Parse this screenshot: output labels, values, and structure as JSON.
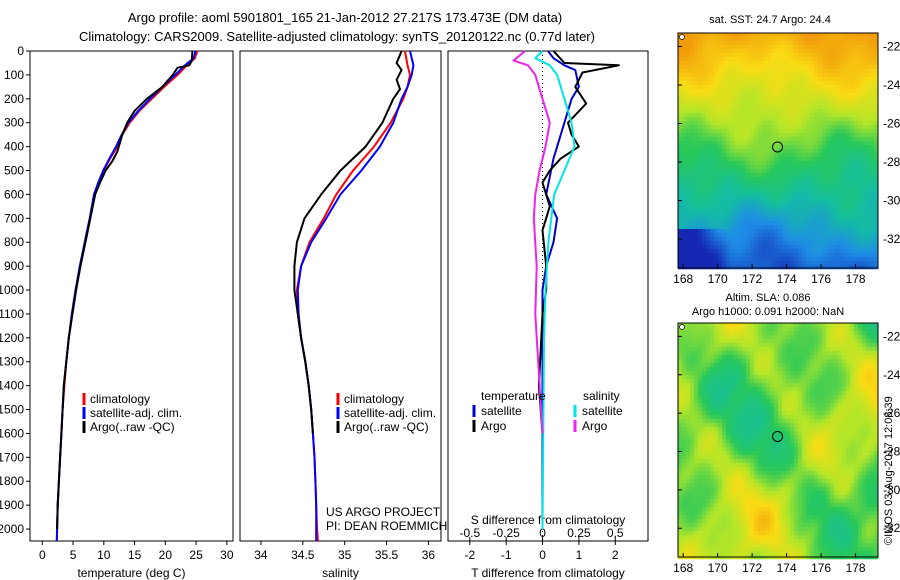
{
  "header": {
    "line1": "Argo profile: aoml 5901801_165 21-Jan-2012 27.217S 173.473E (DM data)",
    "line2": "Climatology: CARS2009. Satellite-adjusted climatology: synTS_20120122.nc (0.77d later)"
  },
  "colors": {
    "climatology": "#ff0000",
    "satellite": "#0000ff",
    "argo": "#000000",
    "t_satellite": "#0000cc",
    "s_satellite": "#00e5e5",
    "s_argo": "#ee22ee"
  },
  "legend_profiles": [
    "climatology",
    "satellite-adj. clim.",
    "Argo(..raw -QC)"
  ],
  "legend_diff": {
    "t_head": "temperature",
    "s_head": "salinity",
    "t_sat": "satellite",
    "t_argo": "Argo",
    "s_sat": "satellite",
    "s_argo": "Argo"
  },
  "credits": {
    "project": "US ARGO PROJECT",
    "pi": "PI: DEAN ROEMMICH",
    "stamp": "©IMOS 03-Aug-2017 12:08:39"
  },
  "maps": {
    "sst_title": "sat. SST: 24.7  Argo: 24.4",
    "sla_title1": "Altim. SLA: 0.086",
    "sla_title2": "Argo h1000: 0.091 h2000: NaN",
    "lon_ticks": [
      168,
      170,
      172,
      174,
      176,
      178
    ],
    "lat_ticks": [
      -22,
      -24,
      -26,
      -28,
      -30,
      -32
    ],
    "lon_range": [
      167.7,
      179.3
    ],
    "lat_range": [
      -21.3,
      -33.5
    ],
    "float_position": {
      "lon": 173.473,
      "lat": -27.217
    }
  },
  "chart_data": [
    {
      "type": "line",
      "xlabel": "temperature (deg C)",
      "xlim": [
        -2,
        31
      ],
      "ylim": [
        2050,
        0
      ],
      "x_ticks": [
        0,
        5,
        10,
        15,
        20,
        25,
        30
      ],
      "y_ticks": [
        0,
        100,
        200,
        300,
        400,
        500,
        600,
        700,
        800,
        900,
        1000,
        1100,
        1200,
        1300,
        1400,
        1500,
        1600,
        1700,
        1800,
        1900,
        2000
      ],
      "series": [
        {
          "name": "climatology",
          "points": [
            [
              25.2,
              0
            ],
            [
              24.8,
              30
            ],
            [
              23.5,
              60
            ],
            [
              22.0,
              100
            ],
            [
              19.8,
              150
            ],
            [
              17.8,
              200
            ],
            [
              15.8,
              250
            ],
            [
              14.2,
              300
            ],
            [
              13.0,
              350
            ],
            [
              12.2,
              400
            ],
            [
              11.0,
              450
            ],
            [
              10.0,
              500
            ],
            [
              9.2,
              550
            ],
            [
              8.5,
              600
            ],
            [
              7.8,
              700
            ],
            [
              7.0,
              800
            ],
            [
              6.2,
              900
            ],
            [
              5.5,
              1000
            ],
            [
              4.9,
              1100
            ],
            [
              4.3,
              1200
            ],
            [
              3.9,
              1300
            ],
            [
              3.6,
              1400
            ],
            [
              3.3,
              1500
            ],
            [
              3.1,
              1600
            ],
            [
              2.9,
              1700
            ],
            [
              2.7,
              1800
            ],
            [
              2.5,
              1900
            ],
            [
              2.4,
              2000
            ],
            [
              2.35,
              2050
            ]
          ]
        },
        {
          "name": "satellite-adj. clim.",
          "points": [
            [
              24.9,
              0
            ],
            [
              24.6,
              30
            ],
            [
              23.2,
              60
            ],
            [
              21.6,
              100
            ],
            [
              19.5,
              150
            ],
            [
              17.5,
              200
            ],
            [
              15.6,
              250
            ],
            [
              14.0,
              300
            ],
            [
              12.9,
              350
            ],
            [
              12.0,
              400
            ],
            [
              10.9,
              450
            ],
            [
              9.9,
              500
            ],
            [
              9.1,
              550
            ],
            [
              8.4,
              600
            ],
            [
              7.7,
              700
            ],
            [
              6.9,
              800
            ],
            [
              6.1,
              900
            ],
            [
              5.4,
              1000
            ],
            [
              4.8,
              1100
            ],
            [
              4.3,
              1200
            ],
            [
              3.9,
              1300
            ],
            [
              3.5,
              1400
            ],
            [
              3.3,
              1500
            ],
            [
              3.1,
              1600
            ],
            [
              2.9,
              1700
            ],
            [
              2.7,
              1800
            ],
            [
              2.5,
              1900
            ],
            [
              2.4,
              2000
            ],
            [
              2.35,
              2050
            ]
          ]
        },
        {
          "name": "Argo(..raw -QC)",
          "points": [
            [
              24.4,
              0
            ],
            [
              24.3,
              40
            ],
            [
              23.9,
              60
            ],
            [
              22.0,
              70
            ],
            [
              21.2,
              100
            ],
            [
              19.5,
              150
            ],
            [
              17.0,
              200
            ],
            [
              15.0,
              250
            ],
            [
              13.8,
              300
            ],
            [
              13.0,
              350
            ],
            [
              12.2,
              420
            ],
            [
              11.4,
              460
            ],
            [
              10.3,
              500
            ],
            [
              9.4,
              550
            ],
            [
              8.6,
              600
            ],
            [
              7.8,
              700
            ],
            [
              7.0,
              800
            ],
            [
              6.2,
              900
            ],
            [
              5.5,
              1000
            ],
            [
              4.9,
              1100
            ],
            [
              4.3,
              1200
            ],
            [
              3.9,
              1300
            ],
            [
              3.5,
              1400
            ],
            [
              3.3,
              1500
            ],
            [
              3.1,
              1600
            ],
            [
              2.9,
              1700
            ],
            [
              2.7,
              1800
            ],
            [
              2.5,
              1900
            ],
            [
              2.4,
              2000
            ]
          ]
        }
      ]
    },
    {
      "type": "line",
      "xlabel": "salinity",
      "xlim": [
        33.75,
        36.15
      ],
      "ylim": [
        2050,
        0
      ],
      "x_ticks": [
        34,
        34.5,
        35,
        35.5,
        36
      ],
      "series": [
        {
          "name": "climatology",
          "points": [
            [
              35.72,
              0
            ],
            [
              35.75,
              60
            ],
            [
              35.78,
              100
            ],
            [
              35.75,
              150
            ],
            [
              35.7,
              200
            ],
            [
              35.55,
              300
            ],
            [
              35.35,
              400
            ],
            [
              35.1,
              500
            ],
            [
              34.9,
              600
            ],
            [
              34.75,
              700
            ],
            [
              34.58,
              800
            ],
            [
              34.48,
              900
            ],
            [
              34.43,
              1000
            ],
            [
              34.44,
              1100
            ],
            [
              34.48,
              1200
            ],
            [
              34.53,
              1300
            ],
            [
              34.57,
              1400
            ],
            [
              34.6,
              1500
            ],
            [
              34.62,
              1600
            ],
            [
              34.64,
              1700
            ],
            [
              34.65,
              1800
            ],
            [
              34.66,
              1900
            ],
            [
              34.67,
              2000
            ],
            [
              34.68,
              2050
            ]
          ]
        },
        {
          "name": "satellite-adj. clim.",
          "points": [
            [
              35.78,
              0
            ],
            [
              35.82,
              60
            ],
            [
              35.8,
              100
            ],
            [
              35.75,
              150
            ],
            [
              35.68,
              200
            ],
            [
              35.58,
              300
            ],
            [
              35.42,
              400
            ],
            [
              35.2,
              500
            ],
            [
              34.95,
              600
            ],
            [
              34.78,
              700
            ],
            [
              34.6,
              800
            ],
            [
              34.48,
              900
            ],
            [
              34.44,
              1000
            ],
            [
              34.45,
              1100
            ],
            [
              34.48,
              1200
            ],
            [
              34.53,
              1300
            ],
            [
              34.57,
              1400
            ],
            [
              34.6,
              1500
            ],
            [
              34.62,
              1600
            ],
            [
              34.64,
              1700
            ],
            [
              34.65,
              1800
            ],
            [
              34.66,
              1900
            ],
            [
              34.66,
              2000
            ],
            [
              34.66,
              2050
            ]
          ]
        },
        {
          "name": "Argo(..raw -QC)",
          "points": [
            [
              35.68,
              0
            ],
            [
              35.62,
              50
            ],
            [
              35.68,
              80
            ],
            [
              35.62,
              120
            ],
            [
              35.66,
              160
            ],
            [
              35.58,
              200
            ],
            [
              35.45,
              300
            ],
            [
              35.25,
              400
            ],
            [
              34.95,
              500
            ],
            [
              34.72,
              600
            ],
            [
              34.52,
              700
            ],
            [
              34.43,
              800
            ],
            [
              34.4,
              900
            ],
            [
              34.4,
              1000
            ],
            [
              34.44,
              1100
            ],
            [
              34.48,
              1200
            ],
            [
              34.53,
              1300
            ],
            [
              34.57,
              1400
            ],
            [
              34.6,
              1500
            ],
            [
              34.62,
              1600
            ]
          ]
        }
      ]
    },
    {
      "type": "line",
      "xlabel": "T difference from climatology",
      "xlabel_top": "S difference from climatology",
      "xlim": [
        -2.6,
        2.9
      ],
      "ylim": [
        2050,
        0
      ],
      "x_ticks": [
        -2,
        -1,
        0,
        1,
        2
      ],
      "x_ticks_top": [
        -0.5,
        -0.25,
        0,
        0.25,
        0.5
      ],
      "series": [
        {
          "name": "temperature satellite",
          "points": [
            [
              0.15,
              0
            ],
            [
              0.3,
              30
            ],
            [
              0.6,
              60
            ],
            [
              0.9,
              80
            ],
            [
              1.0,
              150
            ],
            [
              0.8,
              200
            ],
            [
              0.6,
              300
            ],
            [
              0.3,
              450
            ],
            [
              0.1,
              600
            ],
            [
              0.4,
              700
            ],
            [
              0.3,
              800
            ],
            [
              0.1,
              900
            ],
            [
              0.0,
              1000
            ],
            [
              0.0,
              1200
            ],
            [
              0.0,
              2000
            ]
          ]
        },
        {
          "name": "temperature Argo",
          "points": [
            [
              0.3,
              0
            ],
            [
              0.6,
              50
            ],
            [
              2.1,
              60
            ],
            [
              1.1,
              90
            ],
            [
              0.9,
              150
            ],
            [
              1.2,
              220
            ],
            [
              0.7,
              300
            ],
            [
              0.8,
              350
            ],
            [
              1.0,
              400
            ],
            [
              0.5,
              450
            ],
            [
              0.2,
              500
            ],
            [
              0.0,
              550
            ],
            [
              0.2,
              650
            ],
            [
              0.0,
              750
            ],
            [
              0.1,
              900
            ],
            [
              0.1,
              1000
            ],
            [
              0.0,
              1100
            ],
            [
              -0.1,
              1400
            ],
            [
              0.0,
              1600
            ]
          ]
        },
        {
          "name": "salinity satellite",
          "points": [
            [
              0.0,
              0
            ],
            [
              -0.05,
              30
            ],
            [
              0.05,
              60
            ],
            [
              0.1,
              100
            ],
            [
              0.15,
              200
            ],
            [
              0.2,
              300
            ],
            [
              0.22,
              400
            ],
            [
              0.15,
              500
            ],
            [
              0.08,
              600
            ],
            [
              0.04,
              800
            ],
            [
              0.02,
              1000
            ],
            [
              0.01,
              1200
            ],
            [
              0.0,
              2000
            ]
          ]
        },
        {
          "name": "salinity Argo",
          "points": [
            [
              -0.12,
              0
            ],
            [
              -0.2,
              40
            ],
            [
              -0.1,
              60
            ],
            [
              -0.05,
              100
            ],
            [
              0.0,
              200
            ],
            [
              0.05,
              300
            ],
            [
              0.02,
              400
            ],
            [
              -0.02,
              500
            ],
            [
              -0.05,
              600
            ],
            [
              -0.06,
              700
            ],
            [
              -0.04,
              900
            ],
            [
              -0.05,
              1100
            ],
            [
              -0.03,
              1300
            ],
            [
              0.0,
              1600
            ]
          ]
        }
      ]
    }
  ]
}
